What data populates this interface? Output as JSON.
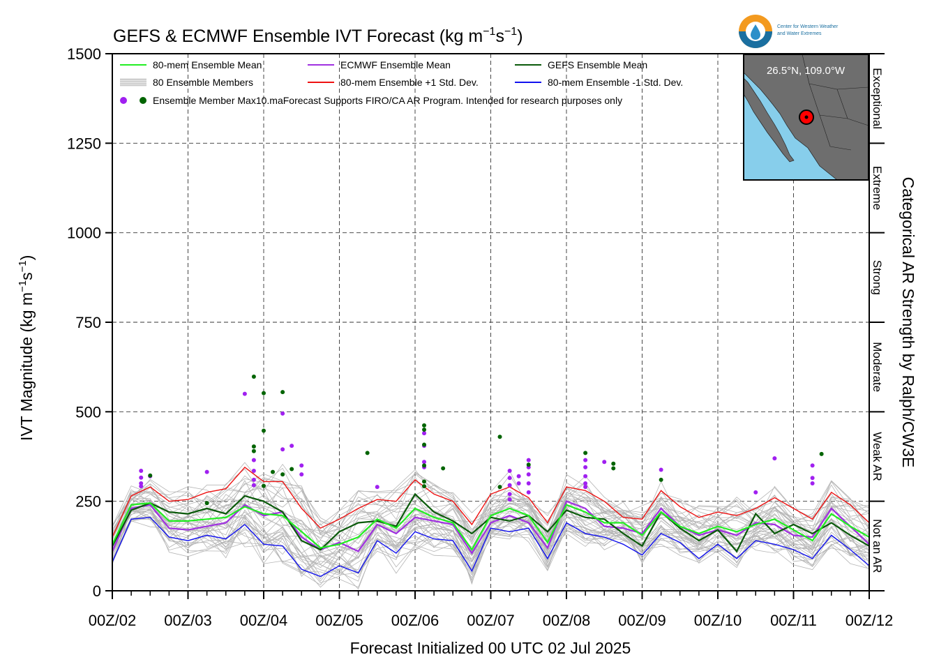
{
  "chart_data": {
    "type": "line",
    "title_main": "GEFS & ECMWF Ensemble IVT Forecast (kg m",
    "title_sup1": "−1",
    "title_mid": "s",
    "title_sup2": "−1",
    "title_end": ")",
    "ylabel_main": "IVT Magnitude (kg m",
    "ylabel_sup1": "−1",
    "ylabel_mid": "s",
    "ylabel_sup2": "−1",
    "ylabel_end": ")",
    "xlabel": "Forecast Initialized 00 UTC 02 Jul 2025",
    "right_axis_label": "Categorical AR Strength by Ralph/CW3E",
    "location_label": "26.5°N, 109.0°W",
    "logo_text_line1": "Center for Western Weather",
    "logo_text_line2": "and Water Extremes",
    "ylim": [
      0,
      1500
    ],
    "yticks": [
      0,
      250,
      500,
      750,
      1000,
      1250,
      1500
    ],
    "xlim": [
      0,
      10
    ],
    "xtick_labels": [
      "00Z/02",
      "00Z/03",
      "00Z/04",
      "00Z/05",
      "00Z/06",
      "00Z/07",
      "00Z/08",
      "00Z/09",
      "00Z/10",
      "00Z/11",
      "00Z/12"
    ],
    "categories_ar": [
      {
        "label": "Not an AR",
        "lo": 0,
        "hi": 250
      },
      {
        "label": "Weak AR",
        "lo": 250,
        "hi": 500
      },
      {
        "label": "Moderate",
        "lo": 500,
        "hi": 750
      },
      {
        "label": "Strong",
        "lo": 750,
        "hi": 1000
      },
      {
        "label": "Extreme",
        "lo": 1000,
        "hi": 1250
      },
      {
        "label": "Exceptional",
        "lo": 1250,
        "hi": 1500
      }
    ],
    "legend": [
      {
        "label": "80-mem Ensemble Mean",
        "color": "#22ee22",
        "kind": "line"
      },
      {
        "label": "ECMWF Ensemble Mean",
        "color": "#a030e0",
        "kind": "line"
      },
      {
        "label": "GEFS Ensemble Mean",
        "color": "#0a5a0a",
        "kind": "line"
      },
      {
        "label": "80 Ensemble Members",
        "color": "#b0b0b0",
        "kind": "multi"
      },
      {
        "label": "80-mem Ensemble +1 Std. Dev.",
        "color": "#ee1111",
        "kind": "line"
      },
      {
        "label": "80-mem Ensemble -1 Std. Dev.",
        "color": "#1111ee",
        "kind": "line"
      }
    ],
    "legend_note": "Ensemble Member Max10.maForecast Supports FIRO/CA AR Program. Intended for research purposes only",
    "x": [
      0,
      0.25,
      0.5,
      0.75,
      1,
      1.25,
      1.5,
      1.75,
      2,
      2.25,
      2.5,
      2.75,
      3,
      3.25,
      3.5,
      3.75,
      4,
      4.25,
      4.5,
      4.75,
      5,
      5.25,
      5.5,
      5.75,
      6,
      6.25,
      6.5,
      6.75,
      7,
      7.25,
      7.5,
      7.75,
      8,
      8.25,
      8.5,
      8.75,
      9,
      9.25,
      9.5,
      9.75,
      10
    ],
    "series": [
      {
        "name": "80-mem Ensemble Mean",
        "color": "#22ee22",
        "values": [
          130,
          240,
          245,
          195,
          195,
          200,
          205,
          235,
          215,
          210,
          165,
          120,
          130,
          150,
          200,
          175,
          230,
          205,
          190,
          115,
          210,
          230,
          210,
          135,
          240,
          220,
          190,
          190,
          155,
          220,
          180,
          160,
          180,
          165,
          185,
          200,
          170,
          140,
          215,
          180,
          150
        ]
      },
      {
        "name": "ECMWF Ensemble Mean",
        "color": "#a030e0",
        "values": [
          110,
          230,
          240,
          175,
          170,
          180,
          190,
          240,
          210,
          220,
          150,
          115,
          135,
          110,
          185,
          160,
          205,
          195,
          185,
          105,
          190,
          210,
          190,
          120,
          250,
          230,
          180,
          175,
          160,
          230,
          180,
          155,
          170,
          155,
          190,
          185,
          155,
          150,
          230,
          180,
          130
        ]
      },
      {
        "name": "GEFS Ensemble Mean",
        "color": "#0a5a0a",
        "values": [
          125,
          225,
          245,
          220,
          215,
          230,
          215,
          265,
          250,
          220,
          140,
          115,
          165,
          190,
          195,
          180,
          270,
          220,
          195,
          160,
          205,
          195,
          210,
          165,
          225,
          205,
          200,
          160,
          125,
          220,
          175,
          140,
          170,
          110,
          215,
          160,
          185,
          160,
          190,
          155,
          125
        ]
      },
      {
        "name": "80-mem Ensemble +1 Std. Dev.",
        "color": "#ee1111",
        "values": [
          150,
          265,
          290,
          250,
          255,
          275,
          285,
          345,
          305,
          305,
          230,
          175,
          200,
          230,
          255,
          250,
          310,
          270,
          250,
          185,
          270,
          290,
          260,
          190,
          290,
          280,
          250,
          205,
          200,
          280,
          235,
          205,
          220,
          210,
          230,
          260,
          230,
          200,
          275,
          240,
          190
        ]
      },
      {
        "name": "80-mem Ensemble -1 Std. Dev.",
        "color": "#1111ee",
        "values": [
          80,
          200,
          205,
          150,
          140,
          155,
          145,
          185,
          130,
          125,
          60,
          40,
          70,
          50,
          140,
          105,
          165,
          145,
          140,
          55,
          175,
          165,
          175,
          90,
          190,
          160,
          150,
          130,
          100,
          160,
          135,
          90,
          130,
          90,
          140,
          130,
          115,
          90,
          155,
          115,
          70
        ]
      }
    ],
    "max_points": {
      "ecmwf_color": "#a020f0",
      "gefs_color": "#006400",
      "ecmwf": [
        [
          0.38,
          335
        ],
        [
          0.38,
          316
        ],
        [
          0.38,
          300
        ],
        [
          0.38,
          292
        ],
        [
          0.5,
          320
        ],
        [
          1.25,
          332
        ],
        [
          1.75,
          550
        ],
        [
          1.87,
          365
        ],
        [
          1.87,
          335
        ],
        [
          1.87,
          310
        ],
        [
          1.87,
          295
        ],
        [
          2.25,
          495
        ],
        [
          2.25,
          395
        ],
        [
          2.37,
          405
        ],
        [
          2.5,
          350
        ],
        [
          2.5,
          325
        ],
        [
          3.5,
          290
        ],
        [
          4.12,
          405
        ],
        [
          4.12,
          440
        ],
        [
          4.12,
          360
        ],
        [
          4.12,
          345
        ],
        [
          5.25,
          335
        ],
        [
          5.25,
          315
        ],
        [
          5.25,
          295
        ],
        [
          5.25,
          270
        ],
        [
          5.25,
          255
        ],
        [
          5.37,
          320
        ],
        [
          5.37,
          300
        ],
        [
          5.5,
          365
        ],
        [
          5.5,
          345
        ],
        [
          5.5,
          325
        ],
        [
          5.5,
          300
        ],
        [
          5.5,
          275
        ],
        [
          6.25,
          365
        ],
        [
          6.25,
          345
        ],
        [
          6.25,
          320
        ],
        [
          6.25,
          300
        ],
        [
          6.25,
          290
        ],
        [
          6.5,
          360
        ],
        [
          7.25,
          338
        ],
        [
          8.5,
          275
        ],
        [
          8.75,
          370
        ],
        [
          9.25,
          350
        ],
        [
          9.25,
          315
        ],
        [
          9.25,
          300
        ]
      ],
      "gefs": [
        [
          0.5,
          322
        ],
        [
          1.25,
          245
        ],
        [
          1.87,
          598
        ],
        [
          1.87,
          403
        ],
        [
          1.87,
          390
        ],
        [
          2,
          552
        ],
        [
          2,
          447
        ],
        [
          2,
          293
        ],
        [
          2.12,
          332
        ],
        [
          2.25,
          555
        ],
        [
          2.25,
          325
        ],
        [
          2.37,
          340
        ],
        [
          3.37,
          385
        ],
        [
          4.12,
          462
        ],
        [
          4.12,
          450
        ],
        [
          4.12,
          408
        ],
        [
          4.12,
          350
        ],
        [
          4.12,
          305
        ],
        [
          4.12,
          292
        ],
        [
          4.37,
          342
        ],
        [
          5.12,
          430
        ],
        [
          5.12,
          290
        ],
        [
          5.5,
          352
        ],
        [
          6.25,
          385
        ],
        [
          6.62,
          355
        ],
        [
          6.62,
          342
        ],
        [
          7.25,
          310
        ],
        [
          9.37,
          382
        ]
      ]
    }
  }
}
